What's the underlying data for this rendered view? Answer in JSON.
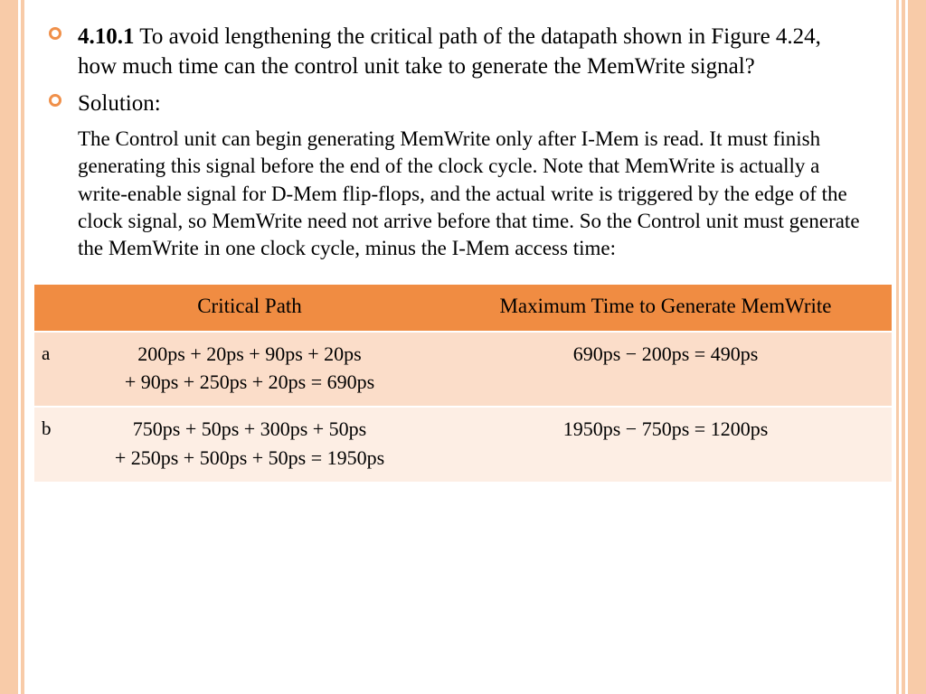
{
  "colors": {
    "accent": "#f08c42",
    "accent_light": "#f8cba8",
    "row_a_bg": "#fbddc9",
    "row_b_bg": "#fdeee4",
    "text": "#000000",
    "bullet_ring": "#f0904a",
    "background": "#ffffff"
  },
  "typography": {
    "family": "Georgia, serif",
    "bullet_fontsize": 25,
    "body_fontsize": 23,
    "table_header_fontsize": 23,
    "table_cell_fontsize": 22
  },
  "question": {
    "number": "4.10.1",
    "text": " To avoid lengthening the critical path of the datapath shown in Figure 4.24, how much time can the control unit take to generate the MemWrite signal?"
  },
  "solution": {
    "label": "Solution:",
    "body": "The Control unit can begin generating MemWrite only after I-Mem is read. It must finish generating this signal before the end of the clock cycle. Note that MemWrite is actually a write-enable signal for D-Mem flip-flops, and the actual write is triggered by the edge of the clock signal, so MemWrite need not arrive before that time. So the Control unit must generate the MemWrite in one clock cycle, minus the I-Mem access time:"
  },
  "table": {
    "headers": {
      "left": "",
      "critical_path": "Critical Path",
      "max_time": "Maximum Time to Generate MemWrite"
    },
    "rows": [
      {
        "label": "a",
        "critical_path_line1": "200ps + 20ps + 90ps + 20ps",
        "critical_path_line2": "+ 90ps + 250ps + 20ps = 690ps",
        "max_time": "690ps − 200ps = 490ps"
      },
      {
        "label": "b",
        "critical_path_line1": "750ps + 50ps + 300ps + 50ps",
        "critical_path_line2": "+ 250ps + 500ps + 50ps = 1950ps",
        "max_time": "1950ps − 750ps = 1200ps"
      }
    ]
  }
}
